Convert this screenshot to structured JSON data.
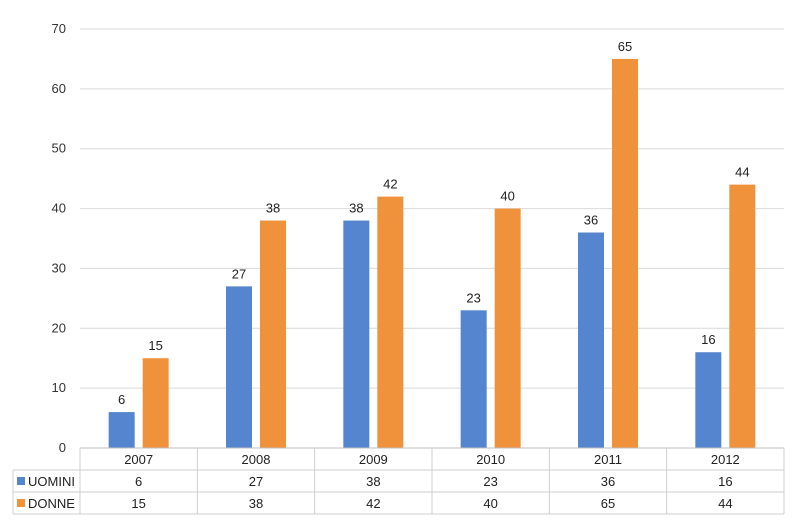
{
  "chart_data": {
    "type": "bar",
    "categories": [
      "2007",
      "2008",
      "2009",
      "2010",
      "2011",
      "2012"
    ],
    "series": [
      {
        "name": "UOMINI",
        "color": "#5585cf",
        "values": [
          6,
          27,
          38,
          23,
          36,
          16
        ]
      },
      {
        "name": "DONNE",
        "color": "#f0923b",
        "values": [
          15,
          38,
          42,
          40,
          65,
          44
        ]
      }
    ],
    "ylim": [
      0,
      70
    ],
    "yticks": [
      "0",
      "10",
      "20",
      "30",
      "40",
      "50",
      "60",
      "70"
    ],
    "grid": true,
    "legend": "data-table-below"
  }
}
